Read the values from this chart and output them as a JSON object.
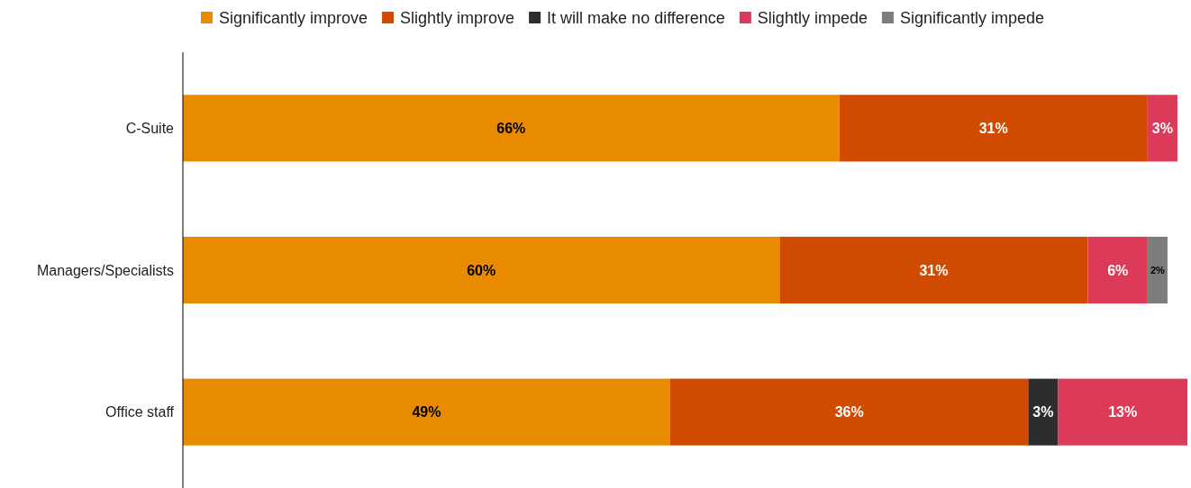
{
  "chart_data": {
    "type": "bar",
    "orientation": "horizontal",
    "stacked": true,
    "categories": [
      "C-Suite",
      "Managers/Specialists",
      "Office staff"
    ],
    "series": [
      {
        "name": "Significantly improve",
        "color": "#e88b00",
        "values": [
          66,
          60,
          49
        ],
        "value_labels": [
          "66%",
          "60%",
          "49%"
        ]
      },
      {
        "name": "Slightly improve",
        "color": "#d04a02",
        "values": [
          31,
          31,
          36
        ],
        "value_labels": [
          "31%",
          "31%",
          "36%"
        ]
      },
      {
        "name": "It will make no difference",
        "color": "#2d2d2d",
        "values": [
          null,
          null,
          3
        ],
        "value_labels": [
          null,
          null,
          "3%"
        ]
      },
      {
        "name": "Slightly impede",
        "color": "#db3b58",
        "values": [
          3,
          6,
          13
        ],
        "value_labels": [
          "3%",
          "6%",
          "13%"
        ]
      },
      {
        "name": "Significantly impede",
        "color": "#7d7d7d",
        "values": [
          null,
          2,
          null
        ],
        "value_labels": [
          null,
          "2%",
          null
        ]
      }
    ],
    "tick_labels": "y",
    "legend": "top"
  }
}
